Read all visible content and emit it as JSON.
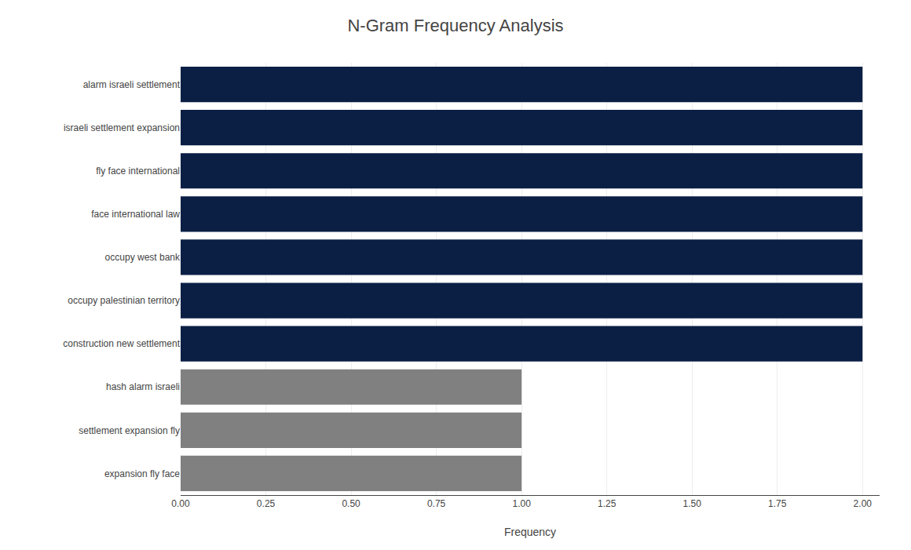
{
  "chart_data": {
    "type": "bar",
    "orientation": "horizontal",
    "title": "N-Gram Frequency Analysis",
    "xlabel": "Frequency",
    "categories": [
      "expansion fly face",
      "settlement expansion fly",
      "hash alarm israeli",
      "construction new settlement",
      "occupy palestinian territory",
      "occupy west bank",
      "face international law",
      "fly face international",
      "israeli settlement expansion",
      "alarm israeli settlement"
    ],
    "values": [
      1,
      1,
      1,
      2,
      2,
      2,
      2,
      2,
      2,
      2
    ],
    "colors": [
      "#808080",
      "#808080",
      "#808080",
      "#0b1f45",
      "#0b1f45",
      "#0b1f45",
      "#0b1f45",
      "#0b1f45",
      "#0b1f45",
      "#0b1f45"
    ],
    "xlim": [
      0,
      2.05
    ],
    "xticks": [
      {
        "value": 0,
        "label": "0.00"
      },
      0.25,
      {
        "value": 0.5,
        "label": "0.50"
      },
      0.75,
      {
        "value": 1,
        "label": "1.00"
      },
      1.25,
      {
        "value": 1.5,
        "label": "1.50"
      },
      1.75,
      {
        "value": 2,
        "label": "2.00"
      }
    ],
    "grid": true
  }
}
